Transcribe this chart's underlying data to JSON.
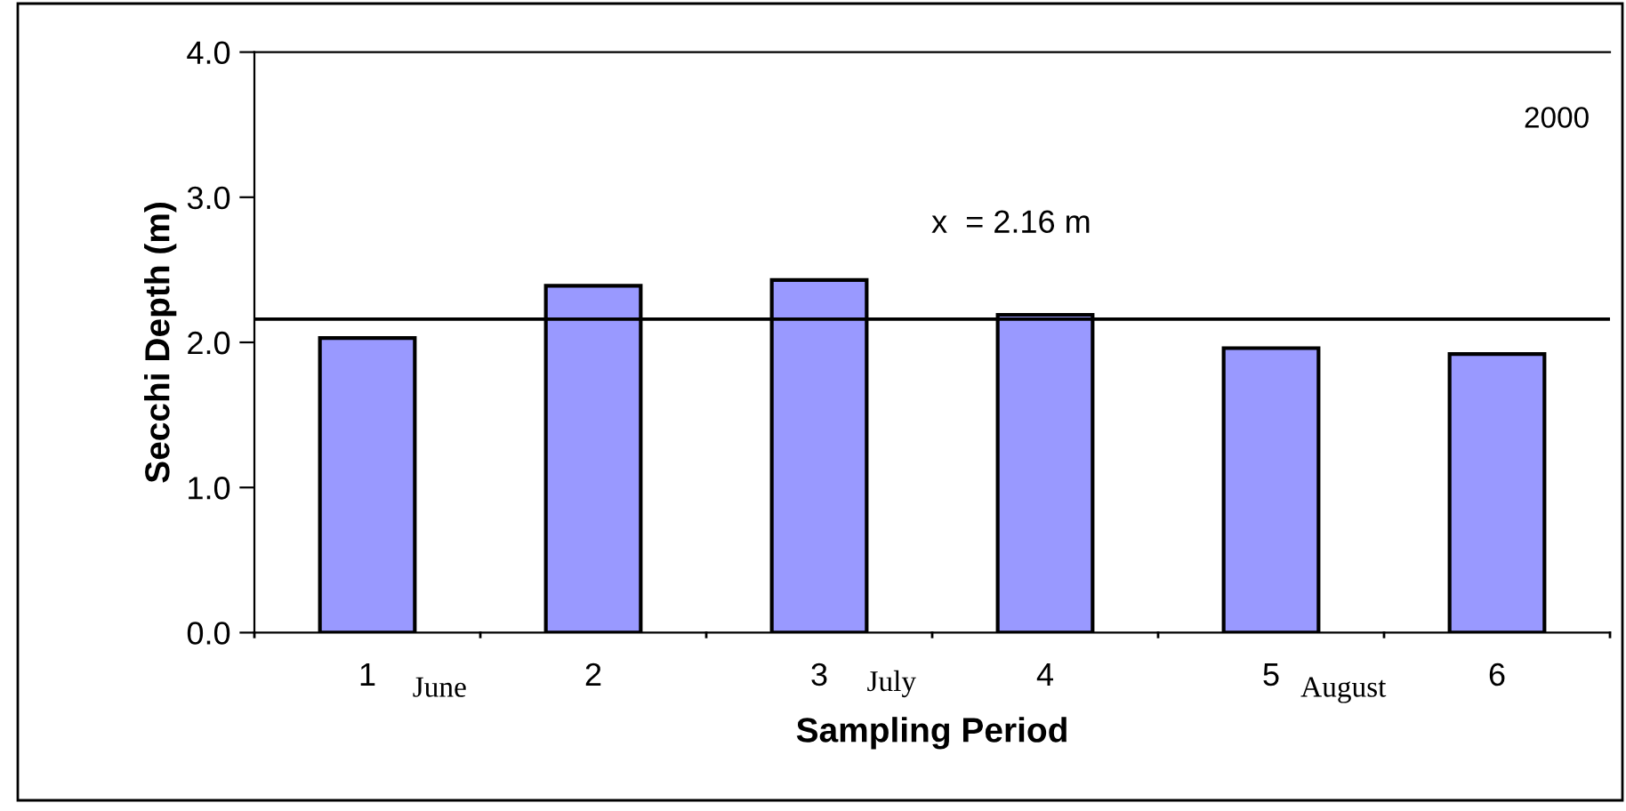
{
  "chart_data": {
    "type": "bar",
    "xlabel": "Sampling Period",
    "ylabel": "Secchi Depth (m)",
    "categories": [
      "1",
      "2",
      "3",
      "4",
      "5",
      "6"
    ],
    "values": [
      2.03,
      2.39,
      2.43,
      2.19,
      1.96,
      1.92
    ],
    "color": "#9999ff",
    "ylim": [
      0,
      4
    ],
    "yticks": [
      {
        "value": 0,
        "label": "0.0"
      },
      {
        "value": 1,
        "label": "1.0"
      },
      {
        "value": 2,
        "label": "2.0"
      },
      {
        "value": 3,
        "label": "3.0"
      },
      {
        "value": 4,
        "label": "4.0"
      }
    ],
    "grid": false,
    "legend": false,
    "ref_lines": [
      {
        "axis": "y",
        "value": 2.16,
        "label": "x  = 2.16 m",
        "color": "#000000"
      }
    ],
    "annotations": [
      "2000",
      "June",
      "July",
      "August"
    ]
  }
}
